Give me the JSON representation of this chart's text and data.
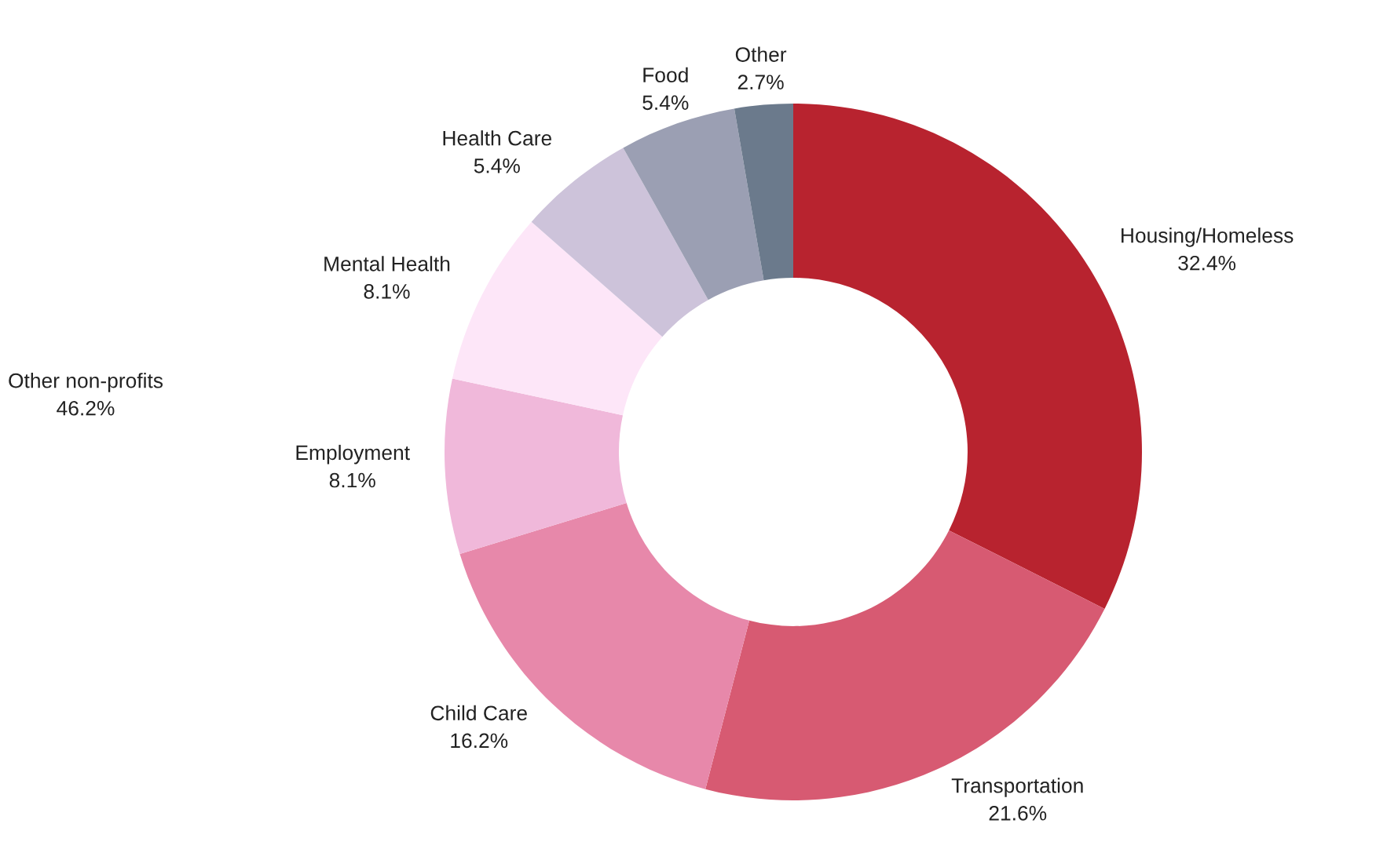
{
  "chart_data": {
    "type": "donut",
    "categories": [
      "Housing/Homeless",
      "Transportation",
      "Child Care",
      "Employment",
      "Mental Health",
      "Health Care",
      "Food",
      "Other"
    ],
    "values": [
      32.4,
      21.6,
      16.2,
      8.1,
      8.1,
      5.4,
      5.4,
      2.7
    ],
    "value_labels": [
      "32.4%",
      "21.6%",
      "16.2%",
      "8.1%",
      "8.1%",
      "5.4%",
      "5.4%",
      "2.7%"
    ],
    "colors": [
      "#b8232f",
      "#d75a72",
      "#e788aa",
      "#f0b8da",
      "#fde6f8",
      "#cdc3da",
      "#9b9fb3",
      "#6b7a8c"
    ],
    "annotations": [
      "Other non-profits\n46.2%"
    ]
  }
}
